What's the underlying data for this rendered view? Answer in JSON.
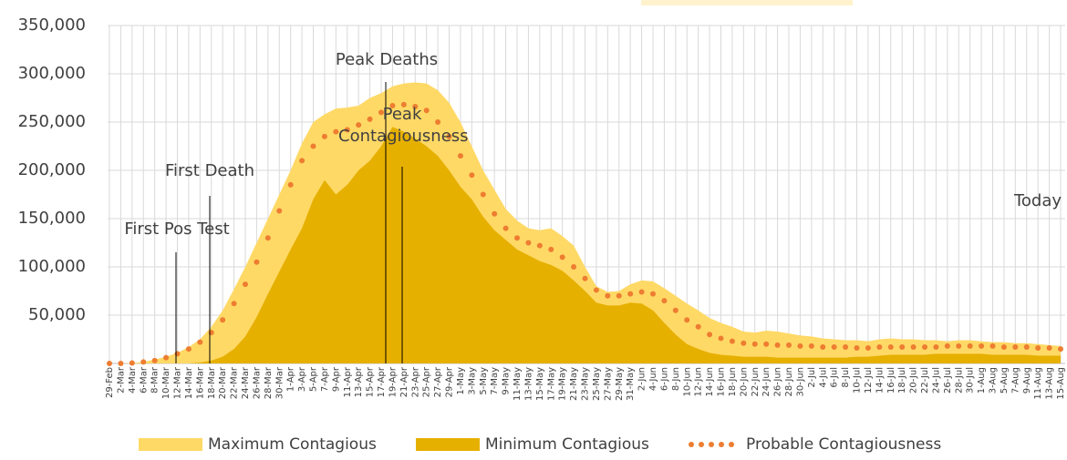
{
  "chart_data": {
    "type": "area",
    "categories": [
      "29-Feb",
      "2-Mar",
      "4-Mar",
      "6-Mar",
      "8-Mar",
      "10-Mar",
      "12-Mar",
      "14-Mar",
      "16-Mar",
      "18-Mar",
      "20-Mar",
      "22-Mar",
      "24-Mar",
      "26-Mar",
      "28-Mar",
      "30-Mar",
      "1-Apr",
      "3-Apr",
      "5-Apr",
      "7-Apr",
      "9-Apr",
      "11-Apr",
      "13-Apr",
      "15-Apr",
      "17-Apr",
      "19-Apr",
      "21-Apr",
      "23-Apr",
      "25-Apr",
      "27-Apr",
      "29-Apr",
      "1-May",
      "3-May",
      "5-May",
      "7-May",
      "9-May",
      "11-May",
      "13-May",
      "15-May",
      "17-May",
      "19-May",
      "21-May",
      "23-May",
      "25-May",
      "27-May",
      "29-May",
      "31-May",
      "2-Jun",
      "4-Jun",
      "6-Jun",
      "8-Jun",
      "10-Jun",
      "12-Jun",
      "14-Jun",
      "16-Jun",
      "18-Jun",
      "20-Jun",
      "22-Jun",
      "24-Jun",
      "26-Jun",
      "28-Jun",
      "30-Jun",
      "2-Jul",
      "4-Jul",
      "6-Jul",
      "8-Jul",
      "10-Jul",
      "12-Jul",
      "14-Jul",
      "16-Jul",
      "18-Jul",
      "20-Jul",
      "22-Jul",
      "24-Jul",
      "26-Jul",
      "28-Jul",
      "30-Jul",
      "1-Aug",
      "3-Aug",
      "5-Aug",
      "7-Aug",
      "9-Aug",
      "11-Aug",
      "13-Aug",
      "15-Aug"
    ],
    "series": [
      {
        "name": "Maximum Contagious",
        "type": "area",
        "color": "#ffd966",
        "values": [
          0,
          0,
          500,
          1500,
          4000,
          7000,
          11000,
          17000,
          25000,
          38000,
          55000,
          77000,
          100000,
          125000,
          150000,
          175000,
          200000,
          228000,
          250000,
          258000,
          264000,
          265000,
          267000,
          275000,
          280000,
          287000,
          290000,
          291000,
          290000,
          283000,
          270000,
          250000,
          225000,
          200000,
          180000,
          160000,
          148000,
          140000,
          138000,
          140000,
          132000,
          122000,
          100000,
          80000,
          74000,
          75000,
          82000,
          86000,
          85000,
          78000,
          70000,
          62000,
          55000,
          47000,
          42000,
          38000,
          33000,
          32000,
          34000,
          33000,
          31000,
          29000,
          28000,
          26000,
          25000,
          24000,
          24000,
          23000,
          25000,
          26000,
          25000,
          25000,
          24000,
          24000,
          23000,
          24000,
          24000,
          23000,
          22000,
          22000,
          21000,
          21000,
          20000,
          19000,
          18000
        ]
      },
      {
        "name": "Minimum Contagious",
        "type": "area",
        "color": "#e6b000",
        "values": [
          0,
          0,
          0,
          0,
          0,
          0,
          0,
          0,
          1000,
          3000,
          7000,
          15000,
          28000,
          48000,
          72000,
          95000,
          118000,
          140000,
          170000,
          190000,
          175000,
          185000,
          200000,
          210000,
          225000,
          245000,
          240000,
          233000,
          225000,
          215000,
          200000,
          183000,
          170000,
          152000,
          138000,
          128000,
          118000,
          112000,
          106000,
          102000,
          96000,
          86000,
          75000,
          63000,
          60000,
          60000,
          63000,
          62000,
          55000,
          42000,
          30000,
          20000,
          15000,
          11000,
          9000,
          8000,
          7000,
          7000,
          7000,
          6000,
          6000,
          6000,
          6000,
          6000,
          6000,
          6000,
          7000,
          7000,
          8000,
          9000,
          9000,
          9000,
          9000,
          10000,
          10000,
          10000,
          10000,
          10000,
          9000,
          9000,
          9000,
          9000,
          8000,
          8000,
          8000
        ]
      },
      {
        "name": "Probable Contagiousness",
        "type": "dots",
        "color": "#ed7d31",
        "values": [
          0,
          0,
          500,
          1500,
          3000,
          6000,
          10000,
          15000,
          22000,
          32000,
          45000,
          62000,
          82000,
          105000,
          130000,
          158000,
          185000,
          210000,
          225000,
          235000,
          240000,
          242000,
          247000,
          253000,
          260000,
          267000,
          268000,
          266000,
          262000,
          250000,
          235000,
          215000,
          195000,
          175000,
          155000,
          140000,
          130000,
          125000,
          122000,
          118000,
          110000,
          100000,
          88000,
          76000,
          70000,
          70000,
          72000,
          74000,
          72000,
          65000,
          55000,
          45000,
          38000,
          30000,
          26000,
          23000,
          21000,
          20000,
          20000,
          19000,
          19000,
          18000,
          18000,
          17000,
          17000,
          17000,
          16000,
          16000,
          17000,
          17000,
          17000,
          17000,
          17000,
          17000,
          18000,
          18000,
          18000,
          18000,
          18000,
          17000,
          17000,
          17000,
          16000,
          16000,
          15000
        ]
      }
    ],
    "ylim": [
      0,
      350000
    ],
    "yticks": [
      {
        "value": 50000,
        "label": "50,000"
      },
      {
        "value": 100000,
        "label": "100,000"
      },
      {
        "value": 150000,
        "label": "150,000"
      },
      {
        "value": 200000,
        "label": "200,000"
      },
      {
        "value": 250000,
        "label": "250,000"
      },
      {
        "value": 300000,
        "label": "300,000"
      },
      {
        "value": 350000,
        "label": "350,000"
      }
    ],
    "grid": true,
    "legend": "bottom",
    "annotations": [
      "First Pos Test",
      "First Death",
      "Peak Deaths",
      "Peak Contagiousness",
      "Today"
    ]
  }
}
